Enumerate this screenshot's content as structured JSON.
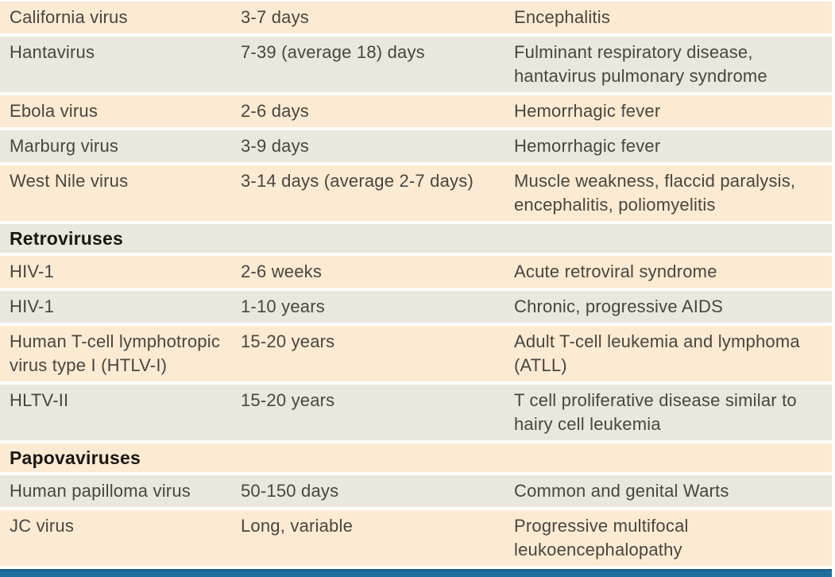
{
  "colors": {
    "row_peach": "#fcead2",
    "row_gray": "#eae8dc",
    "body_text": "#494540",
    "header_text": "#1b1812",
    "accent_bar": "#1f6f9e",
    "accent_bar_edge": "#175a82",
    "page_bg": "#fdfdfb"
  },
  "table": {
    "columns": [
      "virus",
      "incubation_period",
      "disease"
    ],
    "rows": [
      {
        "type": "data",
        "virus": "California virus",
        "incubation": "3-7 days",
        "disease": "Encephalitis"
      },
      {
        "type": "data",
        "virus": "Hantavirus",
        "incubation": "7-39 (average 18) days",
        "disease": "Fulminant respiratory disease, hantavirus pulmonary syndrome"
      },
      {
        "type": "data",
        "virus": "Ebola virus",
        "incubation": "2-6 days",
        "disease": "Hemorrhagic fever"
      },
      {
        "type": "data",
        "virus": "Marburg virus",
        "incubation": "3-9 days",
        "disease": "Hemorrhagic fever"
      },
      {
        "type": "data",
        "virus": "West Nile virus",
        "incubation": "3-14 days (average 2-7 days)",
        "disease": "Muscle weakness, flaccid paralysis, encephalitis, poliomyelitis"
      },
      {
        "type": "section",
        "title": "Retroviruses"
      },
      {
        "type": "data",
        "virus": "HIV-1",
        "incubation": "2-6 weeks",
        "disease": "Acute retroviral syndrome"
      },
      {
        "type": "data",
        "virus": "HIV-1",
        "incubation": "1-10 years",
        "disease": "Chronic, progressive AIDS"
      },
      {
        "type": "data",
        "virus": "Human T-cell lymphotropic virus type I (HTLV-I)",
        "incubation": "15-20 years",
        "disease": "Adult T-cell leukemia and lymphoma (ATLL)"
      },
      {
        "type": "data",
        "virus": "HLTV-II",
        "incubation": "15-20 years",
        "disease": "T cell proliferative disease similar to hairy cell leukemia"
      },
      {
        "type": "section",
        "title": "Papovaviruses"
      },
      {
        "type": "data",
        "virus": "Human papilloma virus",
        "incubation": "50-150 days",
        "disease": "Common and genital Warts"
      },
      {
        "type": "data",
        "virus": "JC virus",
        "incubation": "Long, variable",
        "disease": "Progressive multifocal leukoencephalopathy"
      }
    ]
  }
}
